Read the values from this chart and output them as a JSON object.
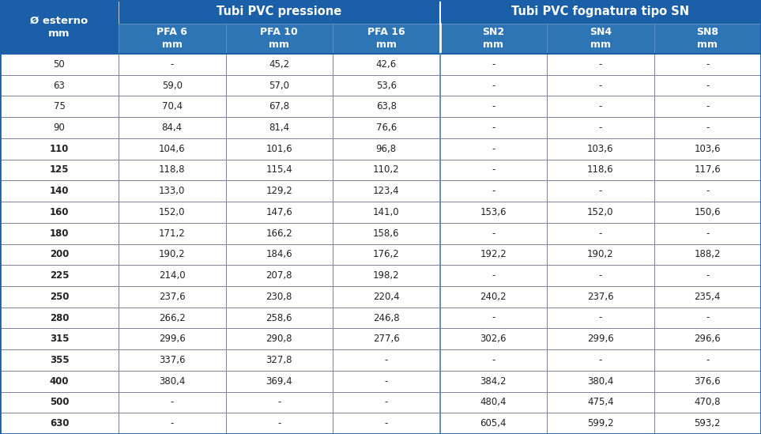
{
  "header1_text": "Tubi PVC pressione",
  "header2_text": "Tubi PVC fognatura tipo SN",
  "col0_header_line1": "Ø esterno",
  "col0_header_line2": "mm",
  "col_headers": [
    [
      "PFA 6",
      "mm"
    ],
    [
      "PFA 10",
      "mm"
    ],
    [
      "PFA 16",
      "mm"
    ],
    [
      "SN2",
      "mm"
    ],
    [
      "SN4",
      "mm"
    ],
    [
      "SN8",
      "mm"
    ]
  ],
  "rows": [
    [
      "50",
      "-",
      "45,2",
      "42,6",
      "-",
      "-",
      "-"
    ],
    [
      "63",
      "59,0",
      "57,0",
      "53,6",
      "-",
      "-",
      "-"
    ],
    [
      "75",
      "70,4",
      "67,8",
      "63,8",
      "-",
      "-",
      "-"
    ],
    [
      "90",
      "84,4",
      "81,4",
      "76,6",
      "-",
      "-",
      "-"
    ],
    [
      "110",
      "104,6",
      "101,6",
      "96,8",
      "-",
      "103,6",
      "103,6"
    ],
    [
      "125",
      "118,8",
      "115,4",
      "110,2",
      "-",
      "118,6",
      "117,6"
    ],
    [
      "140",
      "133,0",
      "129,2",
      "123,4",
      "-",
      "-",
      "-"
    ],
    [
      "160",
      "152,0",
      "147,6",
      "141,0",
      "153,6",
      "152,0",
      "150,6"
    ],
    [
      "180",
      "171,2",
      "166,2",
      "158,6",
      "-",
      "-",
      "-"
    ],
    [
      "200",
      "190,2",
      "184,6",
      "176,2",
      "192,2",
      "190,2",
      "188,2"
    ],
    [
      "225",
      "214,0",
      "207,8",
      "198,2",
      "-",
      "-",
      "-"
    ],
    [
      "250",
      "237,6",
      "230,8",
      "220,4",
      "240,2",
      "237,6",
      "235,4"
    ],
    [
      "280",
      "266,2",
      "258,6",
      "246,8",
      "-",
      "-",
      "-"
    ],
    [
      "315",
      "299,6",
      "290,8",
      "277,6",
      "302,6",
      "299,6",
      "296,6"
    ],
    [
      "355",
      "337,6",
      "327,8",
      "-",
      "-",
      "-",
      "-"
    ],
    [
      "400",
      "380,4",
      "369,4",
      "-",
      "384,2",
      "380,4",
      "376,6"
    ],
    [
      "500",
      "-",
      "-",
      "-",
      "480,4",
      "475,4",
      "470,8"
    ],
    [
      "630",
      "-",
      "-",
      "-",
      "605,4",
      "599,2",
      "593,2"
    ]
  ],
  "header_bg": "#1a5fa8",
  "header_fg": "#ffffff",
  "subheader_bg": "#2e75b6",
  "subheader_fg": "#ffffff",
  "cell_bg": "#ffffff",
  "cell_fg": "#222222",
  "grid_color": "#8080a0",
  "outer_border_color": "#1a5fa8",
  "fig_w": 9.63,
  "fig_h": 5.49,
  "dpi": 100
}
